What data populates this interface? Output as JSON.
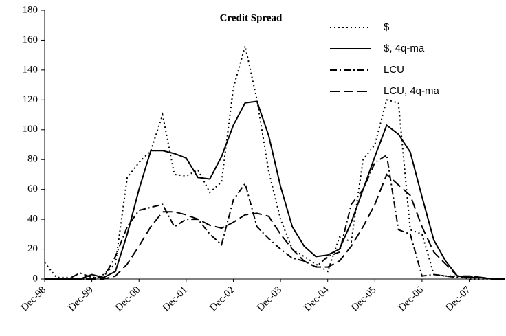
{
  "chart_data": {
    "type": "line",
    "title": "Credit Spread",
    "categories": [
      "Dec-98",
      null,
      null,
      null,
      "Dec-99",
      null,
      null,
      null,
      "Dec-00",
      null,
      null,
      null,
      "Dec-01",
      null,
      null,
      null,
      "Dec-02",
      null,
      null,
      null,
      "Dec-03",
      null,
      null,
      null,
      "Dec-04",
      null,
      null,
      null,
      "Dec-05",
      null,
      null,
      null,
      "Dec-06",
      null,
      null,
      null,
      "Dec-07",
      null,
      null,
      null
    ],
    "series": [
      {
        "name": "$",
        "color": "#000000",
        "dash": "2,4",
        "values": [
          11,
          1,
          1,
          0,
          0,
          3,
          10,
          68,
          78,
          86,
          110,
          70,
          69,
          73,
          58,
          65,
          128,
          156,
          120,
          72,
          40,
          20,
          15,
          10,
          5,
          28,
          25,
          80,
          90,
          120,
          118,
          33,
          30,
          3,
          2,
          2,
          0,
          0,
          0,
          0
        ]
      },
      {
        "name": "$, 4q-ma",
        "color": "#000000",
        "dash": "none",
        "values": [
          0,
          0,
          0,
          0,
          3,
          1,
          5,
          30,
          60,
          86,
          86,
          84,
          81,
          68,
          67,
          82,
          103,
          118,
          119,
          96,
          62,
          35,
          22,
          15,
          16,
          20,
          38,
          60,
          82,
          103,
          97,
          85,
          55,
          26,
          12,
          2,
          1,
          1,
          0,
          0
        ]
      },
      {
        "name": "LCU",
        "color": "#000000",
        "dash": "10,4,2,4",
        "values": [
          0,
          0,
          0,
          4,
          1,
          1,
          15,
          35,
          46,
          48,
          50,
          35,
          40,
          40,
          30,
          23,
          53,
          64,
          35,
          27,
          20,
          14,
          12,
          8,
          15,
          18,
          50,
          60,
          78,
          83,
          33,
          30,
          2,
          3,
          2,
          1,
          2,
          1,
          0,
          0
        ]
      },
      {
        "name": "LCU, 4q-ma",
        "color": "#000000",
        "dash": "14,6",
        "values": [
          0,
          0,
          0,
          0,
          0,
          0,
          2,
          10,
          22,
          35,
          45,
          45,
          43,
          40,
          36,
          34,
          38,
          43,
          44,
          42,
          30,
          20,
          12,
          8,
          8,
          12,
          22,
          35,
          50,
          70,
          63,
          56,
          35,
          18,
          10,
          2,
          2,
          1,
          0,
          0
        ]
      }
    ],
    "ylim": [
      0,
      180
    ],
    "yticks": [
      0,
      20,
      40,
      60,
      80,
      100,
      120,
      140,
      160,
      180
    ],
    "grid": false,
    "legend": "top-right"
  }
}
